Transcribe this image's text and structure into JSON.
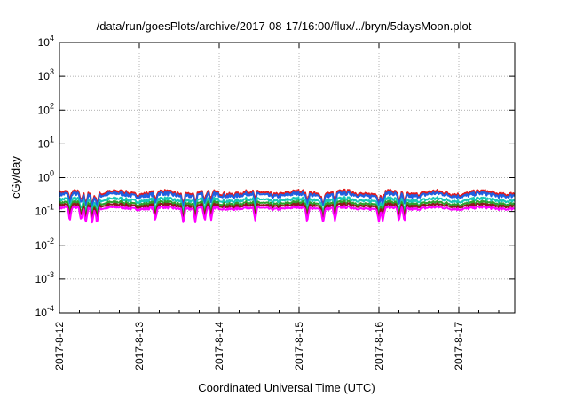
{
  "chart_data": {
    "type": "line",
    "title": "/data/run/goesPlots/archive/2017-08-17/16:00/flux/../bryn/5daysMoon.plot",
    "xlabel": "Coordinated Universal Time (UTC)",
    "ylabel": "cGy/day",
    "yscale": "log",
    "ylim": [
      0.0001,
      10000
    ],
    "y_ticks": [
      {
        "base": "10",
        "exp": "-4"
      },
      {
        "base": "10",
        "exp": "-3"
      },
      {
        "base": "10",
        "exp": "-2"
      },
      {
        "base": "10",
        "exp": "-1"
      },
      {
        "base": "10",
        "exp": "0"
      },
      {
        "base": "10",
        "exp": "1"
      },
      {
        "base": "10",
        "exp": "2"
      },
      {
        "base": "10",
        "exp": "3"
      },
      {
        "base": "10",
        "exp": "4"
      }
    ],
    "x_ticks": [
      "2017-8-12",
      "2017-8-13",
      "2017-8-14",
      "2017-8-15",
      "2017-8-16",
      "2017-8-17"
    ],
    "xlim_days": [
      0,
      5.7
    ],
    "grid": true,
    "series": [
      {
        "color": "#e31a1c",
        "baseline": 0.35,
        "dip_depth": 1.1
      },
      {
        "color": "#1f5fe0",
        "baseline": 0.31,
        "dip_depth": 1.2
      },
      {
        "color": "#16c7b6",
        "baseline": 0.22,
        "dip_depth": 1.3
      },
      {
        "color": "#2ca02c",
        "baseline": 0.175,
        "dip_depth": 1.35
      },
      {
        "color": "#8b1a1a",
        "baseline": 0.15,
        "dip_depth": 1.4
      },
      {
        "color": "#ff00ff",
        "baseline": 0.125,
        "dip_depth": 1.6
      }
    ]
  }
}
